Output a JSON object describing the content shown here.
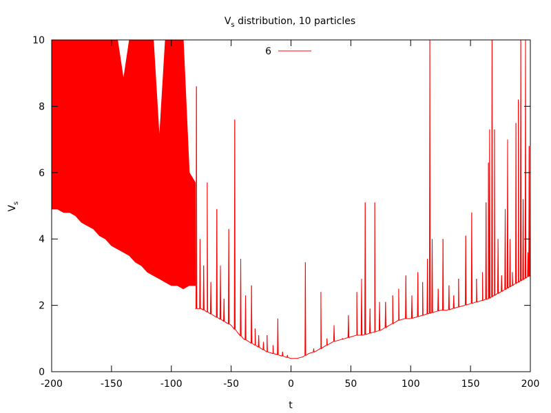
{
  "chart_data": {
    "type": "line",
    "title": "V",
    "title_sub": "s",
    "title_rest": " distribution, 10 particles",
    "xlabel": "t",
    "ylabel": "V",
    "ylabel_sub": "s",
    "xlim": [
      -200,
      200
    ],
    "ylim": [
      0,
      10
    ],
    "xticks": [
      "-200",
      "-150",
      "-100",
      "-50",
      "0",
      "50",
      "100",
      "150",
      "200"
    ],
    "yticks": [
      "0",
      "2",
      "4",
      "6",
      "8",
      "10"
    ],
    "grid": false,
    "legend_position": "top-center",
    "series": [
      {
        "name": "6",
        "color": "#ff0000",
        "dense_region": {
          "x": [
            -200,
            -195,
            -190,
            -185,
            -180,
            -175,
            -170,
            -165,
            -160,
            -155,
            -150,
            -145,
            -140,
            -135,
            -130,
            -125,
            -120,
            -115,
            -110,
            -105,
            -100,
            -95,
            -90,
            -85,
            -80
          ],
          "upper": [
            10,
            10,
            10,
            10,
            10,
            10,
            10,
            10,
            10,
            10,
            10,
            10,
            8.8,
            10,
            10,
            10,
            10,
            10,
            7.0,
            10,
            10,
            10,
            10,
            6.0,
            5.7
          ],
          "lower": [
            4.9,
            4.9,
            4.8,
            4.8,
            4.7,
            4.5,
            4.4,
            4.3,
            4.1,
            4.0,
            3.8,
            3.7,
            3.6,
            3.5,
            3.3,
            3.2,
            3.0,
            2.9,
            2.8,
            2.7,
            2.6,
            2.6,
            2.5,
            2.6,
            2.6
          ]
        },
        "baseline": {
          "x": [
            -80,
            -75,
            -70,
            -65,
            -60,
            -55,
            -50,
            -45,
            -40,
            -35,
            -30,
            -25,
            -20,
            -15,
            -10,
            -5,
            0,
            5,
            10,
            15,
            20,
            25,
            30,
            35,
            40,
            45,
            50,
            55,
            60,
            65,
            70,
            75,
            80,
            85,
            90,
            95,
            100,
            105,
            110,
            115,
            120,
            125,
            130,
            135,
            140,
            145,
            150,
            155,
            160,
            165,
            170,
            175,
            180,
            185,
            190,
            195,
            200
          ],
          "y": [
            1.9,
            1.9,
            1.8,
            1.7,
            1.6,
            1.5,
            1.4,
            1.2,
            1.0,
            0.9,
            0.8,
            0.7,
            0.6,
            0.55,
            0.5,
            0.45,
            0.4,
            0.4,
            0.45,
            0.55,
            0.6,
            0.7,
            0.8,
            0.9,
            0.95,
            1.0,
            1.05,
            1.1,
            1.1,
            1.15,
            1.2,
            1.25,
            1.35,
            1.45,
            1.55,
            1.6,
            1.6,
            1.65,
            1.7,
            1.75,
            1.8,
            1.85,
            1.85,
            1.9,
            1.95,
            2.0,
            2.05,
            2.1,
            2.15,
            2.2,
            2.3,
            2.4,
            2.5,
            2.6,
            2.7,
            2.8,
            2.9
          ]
        },
        "spikes": [
          {
            "x": -79,
            "y": 8.6
          },
          {
            "x": -76,
            "y": 4.0
          },
          {
            "x": -73,
            "y": 3.2
          },
          {
            "x": -70,
            "y": 5.7
          },
          {
            "x": -67,
            "y": 2.7
          },
          {
            "x": -62,
            "y": 4.9
          },
          {
            "x": -59,
            "y": 3.2
          },
          {
            "x": -56,
            "y": 2.2
          },
          {
            "x": -52,
            "y": 4.3
          },
          {
            "x": -47,
            "y": 7.6
          },
          {
            "x": -42,
            "y": 3.4
          },
          {
            "x": -38,
            "y": 2.3
          },
          {
            "x": -33,
            "y": 2.6
          },
          {
            "x": -30,
            "y": 1.3
          },
          {
            "x": -27,
            "y": 1.1
          },
          {
            "x": -23,
            "y": 0.9
          },
          {
            "x": -20,
            "y": 1.1
          },
          {
            "x": -15,
            "y": 0.8
          },
          {
            "x": -11,
            "y": 1.6
          },
          {
            "x": -7,
            "y": 0.6
          },
          {
            "x": -3,
            "y": 0.5
          },
          {
            "x": 12,
            "y": 3.3
          },
          {
            "x": 19,
            "y": 0.7
          },
          {
            "x": 25,
            "y": 2.4
          },
          {
            "x": 30,
            "y": 1.0
          },
          {
            "x": 36,
            "y": 1.4
          },
          {
            "x": 43,
            "y": 1.0
          },
          {
            "x": 48,
            "y": 1.7
          },
          {
            "x": 55,
            "y": 2.4
          },
          {
            "x": 59,
            "y": 2.8
          },
          {
            "x": 62,
            "y": 5.1
          },
          {
            "x": 66,
            "y": 1.9
          },
          {
            "x": 70,
            "y": 5.1
          },
          {
            "x": 74,
            "y": 2.1
          },
          {
            "x": 79,
            "y": 2.1
          },
          {
            "x": 85,
            "y": 2.3
          },
          {
            "x": 90,
            "y": 2.5
          },
          {
            "x": 96,
            "y": 2.9
          },
          {
            "x": 101,
            "y": 2.3
          },
          {
            "x": 106,
            "y": 3.0
          },
          {
            "x": 110,
            "y": 2.7
          },
          {
            "x": 114,
            "y": 3.4
          },
          {
            "x": 116,
            "y": 10.0
          },
          {
            "x": 118,
            "y": 4.0
          },
          {
            "x": 123,
            "y": 2.5
          },
          {
            "x": 127,
            "y": 4.0
          },
          {
            "x": 132,
            "y": 2.6
          },
          {
            "x": 136,
            "y": 2.3
          },
          {
            "x": 140,
            "y": 2.8
          },
          {
            "x": 146,
            "y": 4.1
          },
          {
            "x": 151,
            "y": 4.8
          },
          {
            "x": 155,
            "y": 2.8
          },
          {
            "x": 160,
            "y": 3.0
          },
          {
            "x": 163,
            "y": 5.1
          },
          {
            "x": 165,
            "y": 6.3
          },
          {
            "x": 166,
            "y": 7.3
          },
          {
            "x": 168,
            "y": 10.0
          },
          {
            "x": 170,
            "y": 7.3
          },
          {
            "x": 173,
            "y": 4.0
          },
          {
            "x": 176,
            "y": 2.9
          },
          {
            "x": 179,
            "y": 4.9
          },
          {
            "x": 181,
            "y": 7.0
          },
          {
            "x": 183,
            "y": 4.0
          },
          {
            "x": 185,
            "y": 3.0
          },
          {
            "x": 188,
            "y": 7.5
          },
          {
            "x": 190,
            "y": 8.2
          },
          {
            "x": 192,
            "y": 10.0
          },
          {
            "x": 194,
            "y": 5.2
          },
          {
            "x": 196,
            "y": 10.0
          },
          {
            "x": 198,
            "y": 3.6
          },
          {
            "x": 199,
            "y": 6.8
          }
        ]
      }
    ]
  }
}
